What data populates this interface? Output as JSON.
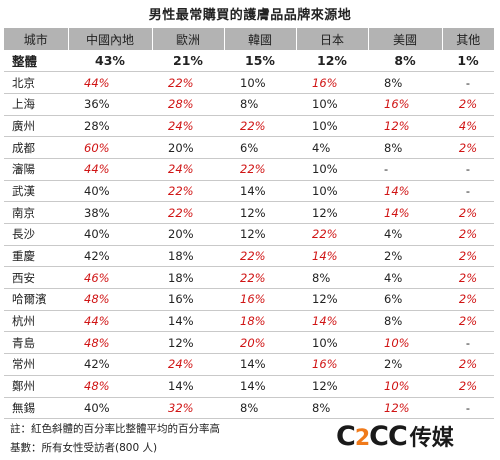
{
  "title": "男性最常購買的護膚品品牌來源地",
  "headers": [
    "城市",
    "中國內地",
    "歐洲",
    "韓國",
    "日本",
    "美國",
    "其他"
  ],
  "total": {
    "city": "整體",
    "values": [
      "43%",
      "21%",
      "15%",
      "12%",
      "8%",
      "1%"
    ]
  },
  "rows": [
    {
      "city": "北京",
      "cells": [
        {
          "v": "44%",
          "h": true
        },
        {
          "v": "22%",
          "h": true
        },
        {
          "v": "10%",
          "h": false
        },
        {
          "v": "16%",
          "h": true
        },
        {
          "v": "8%",
          "h": false
        },
        {
          "v": "-",
          "h": false
        }
      ]
    },
    {
      "city": "上海",
      "cells": [
        {
          "v": "36%",
          "h": false
        },
        {
          "v": "28%",
          "h": true
        },
        {
          "v": "8%",
          "h": false
        },
        {
          "v": "10%",
          "h": false
        },
        {
          "v": "16%",
          "h": true
        },
        {
          "v": "2%",
          "h": true
        }
      ]
    },
    {
      "city": "廣州",
      "cells": [
        {
          "v": "28%",
          "h": false
        },
        {
          "v": "24%",
          "h": true
        },
        {
          "v": "22%",
          "h": true
        },
        {
          "v": "10%",
          "h": false
        },
        {
          "v": "12%",
          "h": true
        },
        {
          "v": "4%",
          "h": true
        }
      ]
    },
    {
      "city": "成都",
      "cells": [
        {
          "v": "60%",
          "h": true
        },
        {
          "v": "20%",
          "h": false
        },
        {
          "v": "6%",
          "h": false
        },
        {
          "v": "4%",
          "h": false
        },
        {
          "v": "8%",
          "h": false
        },
        {
          "v": "2%",
          "h": true
        }
      ]
    },
    {
      "city": "瀋陽",
      "cells": [
        {
          "v": "44%",
          "h": true
        },
        {
          "v": "24%",
          "h": true
        },
        {
          "v": "22%",
          "h": true
        },
        {
          "v": "10%",
          "h": false
        },
        {
          "v": "-",
          "h": false
        },
        {
          "v": "-",
          "h": false
        }
      ]
    },
    {
      "city": "武漢",
      "cells": [
        {
          "v": "40%",
          "h": false
        },
        {
          "v": "22%",
          "h": true
        },
        {
          "v": "14%",
          "h": false
        },
        {
          "v": "10%",
          "h": false
        },
        {
          "v": "14%",
          "h": true
        },
        {
          "v": "-",
          "h": false
        }
      ]
    },
    {
      "city": "南京",
      "cells": [
        {
          "v": "38%",
          "h": false
        },
        {
          "v": "22%",
          "h": true
        },
        {
          "v": "12%",
          "h": false
        },
        {
          "v": "12%",
          "h": false
        },
        {
          "v": "14%",
          "h": true
        },
        {
          "v": "2%",
          "h": true
        }
      ]
    },
    {
      "city": "長沙",
      "cells": [
        {
          "v": "40%",
          "h": false
        },
        {
          "v": "20%",
          "h": false
        },
        {
          "v": "12%",
          "h": false
        },
        {
          "v": "22%",
          "h": true
        },
        {
          "v": "4%",
          "h": false
        },
        {
          "v": "2%",
          "h": true
        }
      ]
    },
    {
      "city": "重慶",
      "cells": [
        {
          "v": "42%",
          "h": false
        },
        {
          "v": "18%",
          "h": false
        },
        {
          "v": "22%",
          "h": true
        },
        {
          "v": "14%",
          "h": true
        },
        {
          "v": "2%",
          "h": false
        },
        {
          "v": "2%",
          "h": true
        }
      ]
    },
    {
      "city": "西安",
      "cells": [
        {
          "v": "46%",
          "h": true
        },
        {
          "v": "18%",
          "h": false
        },
        {
          "v": "22%",
          "h": true
        },
        {
          "v": "8%",
          "h": false
        },
        {
          "v": "4%",
          "h": false
        },
        {
          "v": "2%",
          "h": true
        }
      ]
    },
    {
      "city": "哈爾濱",
      "cells": [
        {
          "v": "48%",
          "h": true
        },
        {
          "v": "16%",
          "h": false
        },
        {
          "v": "16%",
          "h": true
        },
        {
          "v": "12%",
          "h": false
        },
        {
          "v": "6%",
          "h": false
        },
        {
          "v": "2%",
          "h": true
        }
      ]
    },
    {
      "city": "杭州",
      "cells": [
        {
          "v": "44%",
          "h": true
        },
        {
          "v": "14%",
          "h": false
        },
        {
          "v": "18%",
          "h": true
        },
        {
          "v": "14%",
          "h": true
        },
        {
          "v": "8%",
          "h": false
        },
        {
          "v": "2%",
          "h": true
        }
      ]
    },
    {
      "city": "青島",
      "cells": [
        {
          "v": "48%",
          "h": true
        },
        {
          "v": "12%",
          "h": false
        },
        {
          "v": "20%",
          "h": true
        },
        {
          "v": "10%",
          "h": false
        },
        {
          "v": "10%",
          "h": true
        },
        {
          "v": "-",
          "h": false
        }
      ]
    },
    {
      "city": "常州",
      "cells": [
        {
          "v": "42%",
          "h": false
        },
        {
          "v": "24%",
          "h": true
        },
        {
          "v": "14%",
          "h": false
        },
        {
          "v": "16%",
          "h": true
        },
        {
          "v": "2%",
          "h": false
        },
        {
          "v": "2%",
          "h": true
        }
      ]
    },
    {
      "city": "鄭州",
      "cells": [
        {
          "v": "48%",
          "h": true
        },
        {
          "v": "14%",
          "h": false
        },
        {
          "v": "14%",
          "h": false
        },
        {
          "v": "12%",
          "h": false
        },
        {
          "v": "10%",
          "h": true
        },
        {
          "v": "2%",
          "h": true
        }
      ]
    },
    {
      "city": "無錫",
      "cells": [
        {
          "v": "40%",
          "h": false
        },
        {
          "v": "32%",
          "h": true
        },
        {
          "v": "8%",
          "h": false
        },
        {
          "v": "8%",
          "h": false
        },
        {
          "v": "12%",
          "h": true
        },
        {
          "v": "-",
          "h": false
        }
      ]
    }
  ],
  "note": "註：紅色斜體的百分率比整體平均的百分率高",
  "base": "基數：所有女性受訪者(800 人)",
  "logo": {
    "mark_c1": "C",
    "mark_2": "2",
    "mark_cc": "CC",
    "text": "传媒"
  },
  "colors": {
    "highlight": "#d01414",
    "header_bg": "#b3b3b3",
    "logo_accent": "#f07a1a"
  }
}
